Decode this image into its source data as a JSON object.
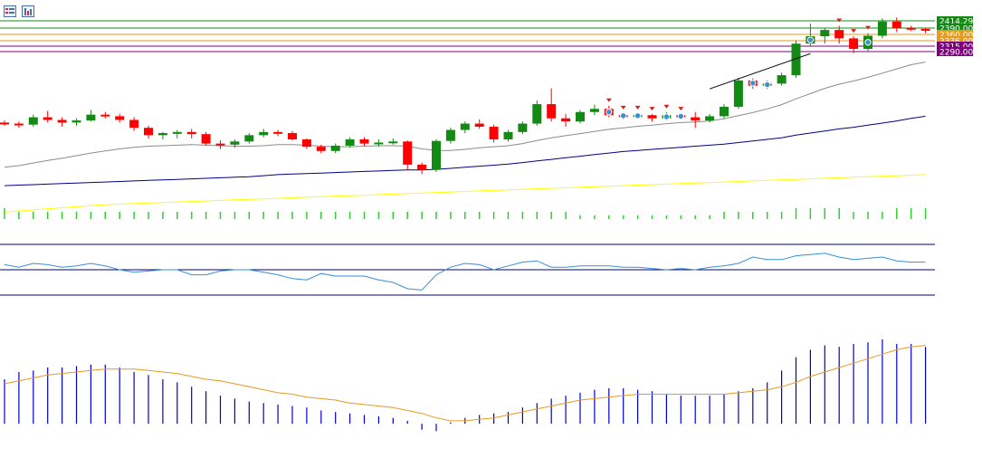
{
  "toolbar": {
    "icons": [
      "chart-list-icon",
      "chart-bar-icon"
    ]
  },
  "colors": {
    "bull": "#138a13",
    "bear": "#ff0000",
    "ma_fast": "#8c8c8c",
    "ma_mid": "#00008b",
    "ma_slow": "#ffff00",
    "volume": "#32cd32",
    "rsi": "#3a8fd6",
    "hist": "#0000cd",
    "signal": "#e69a1e",
    "trend": "#000000"
  },
  "chart_data": [
    {
      "type": "candlestick",
      "panel": "price",
      "levels": [
        {
          "value": 2414.29,
          "label": "2414.29",
          "color": "#138a13"
        },
        {
          "value": 2390.0,
          "label": "2390.00",
          "color": "#138a13"
        },
        {
          "value": 2360.0,
          "label": "2360.00",
          "color": "#e69a1e"
        },
        {
          "value": 2336.0,
          "label": "2336.00",
          "color": "#e69a1e"
        },
        {
          "value": 2315.0,
          "label": "2315.00",
          "color": "#800080"
        },
        {
          "value": 2290.0,
          "label": "2290.00",
          "color": "#800080"
        }
      ],
      "ohlc": [
        [
          1880,
          1884,
          1874,
          1878
        ],
        [
          1878,
          1882,
          1870,
          1876
        ],
        [
          1876,
          1895,
          1872,
          1890
        ],
        [
          1890,
          1902,
          1880,
          1885
        ],
        [
          1885,
          1890,
          1872,
          1880
        ],
        [
          1880,
          1888,
          1874,
          1884
        ],
        [
          1884,
          1904,
          1882,
          1895
        ],
        [
          1895,
          1900,
          1888,
          1892
        ],
        [
          1892,
          1896,
          1880,
          1885
        ],
        [
          1885,
          1890,
          1864,
          1870
        ],
        [
          1870,
          1874,
          1850,
          1856
        ],
        [
          1856,
          1862,
          1848,
          1860
        ],
        [
          1860,
          1866,
          1850,
          1862
        ],
        [
          1862,
          1868,
          1850,
          1858
        ],
        [
          1858,
          1862,
          1836,
          1840
        ],
        [
          1840,
          1846,
          1830,
          1838
        ],
        [
          1838,
          1848,
          1832,
          1844
        ],
        [
          1844,
          1860,
          1840,
          1856
        ],
        [
          1856,
          1868,
          1852,
          1862
        ],
        [
          1862,
          1866,
          1854,
          1860
        ],
        [
          1860,
          1864,
          1846,
          1848
        ],
        [
          1848,
          1850,
          1830,
          1834
        ],
        [
          1834,
          1838,
          1822,
          1826
        ],
        [
          1826,
          1840,
          1822,
          1836
        ],
        [
          1836,
          1852,
          1832,
          1848
        ],
        [
          1848,
          1852,
          1836,
          1840
        ],
        [
          1840,
          1848,
          1834,
          1842
        ],
        [
          1842,
          1850,
          1838,
          1844
        ],
        [
          1844,
          1846,
          1790,
          1800
        ],
        [
          1800,
          1804,
          1782,
          1790
        ],
        [
          1790,
          1848,
          1786,
          1845
        ],
        [
          1845,
          1870,
          1840,
          1866
        ],
        [
          1866,
          1882,
          1860,
          1878
        ],
        [
          1878,
          1886,
          1868,
          1872
        ],
        [
          1872,
          1876,
          1842,
          1848
        ],
        [
          1848,
          1866,
          1844,
          1862
        ],
        [
          1862,
          1882,
          1858,
          1878
        ],
        [
          1878,
          1922,
          1874,
          1915
        ],
        [
          1915,
          1945,
          1882,
          1888
        ],
        [
          1888,
          1896,
          1872,
          1882
        ],
        [
          1882,
          1904,
          1878,
          1900
        ],
        [
          1900,
          1914,
          1894,
          1906
        ],
        [
          1906,
          1912,
          1890,
          1894
        ],
        [
          1894,
          1898,
          1886,
          1892
        ],
        [
          1892,
          1898,
          1888,
          1894
        ],
        [
          1894,
          1896,
          1882,
          1888
        ],
        [
          1888,
          1900,
          1884,
          1894
        ],
        [
          1894,
          1896,
          1886,
          1890
        ],
        [
          1890,
          1900,
          1870,
          1884
        ],
        [
          1884,
          1896,
          1880,
          1892
        ],
        [
          1892,
          1915,
          1888,
          1910
        ],
        [
          1910,
          1965,
          1906,
          1960
        ],
        [
          1960,
          1964,
          1944,
          1950
        ],
        [
          1950,
          1960,
          1944,
          1954
        ],
        [
          1954,
          1975,
          1950,
          1970
        ],
        [
          1970,
          2036,
          1965,
          2030
        ],
        [
          2030,
          2068,
          2024,
          2044
        ],
        [
          2044,
          2060,
          2030,
          2056
        ],
        [
          2056,
          2064,
          2030,
          2040
        ],
        [
          2040,
          2044,
          2012,
          2020
        ],
        [
          2020,
          2050,
          2016,
          2045
        ],
        [
          2045,
          2078,
          2040,
          2072
        ],
        [
          2072,
          2080,
          2052,
          2060
        ],
        [
          2060,
          2064,
          2054,
          2058
        ],
        [
          2058,
          2060,
          2050,
          2055
        ]
      ],
      "ma_fast": [
        1795,
        1798,
        1803,
        1808,
        1812,
        1817,
        1822,
        1826,
        1830,
        1833,
        1835,
        1836,
        1837,
        1838,
        1837,
        1836,
        1835,
        1835,
        1836,
        1838,
        1838,
        1837,
        1835,
        1834,
        1834,
        1835,
        1836,
        1836,
        1835,
        1830,
        1827,
        1827,
        1829,
        1832,
        1834,
        1836,
        1840,
        1846,
        1851,
        1855,
        1859,
        1863,
        1867,
        1870,
        1873,
        1875,
        1878,
        1880,
        1881,
        1883,
        1887,
        1893,
        1899,
        1906,
        1914,
        1925,
        1935,
        1945,
        1953,
        1959,
        1966,
        1974,
        1982,
        1990,
        1995
      ],
      "ma_mid": [
        1760,
        1761,
        1762,
        1763,
        1764,
        1765,
        1766,
        1767,
        1768,
        1769,
        1770,
        1771,
        1772,
        1773,
        1774,
        1775,
        1776,
        1777,
        1779,
        1781,
        1782,
        1783,
        1784,
        1785,
        1786,
        1787,
        1788,
        1789,
        1790,
        1790,
        1791,
        1793,
        1795,
        1797,
        1799,
        1801,
        1804,
        1807,
        1810,
        1813,
        1816,
        1819,
        1822,
        1825,
        1827,
        1829,
        1831,
        1833,
        1835,
        1837,
        1839,
        1842,
        1845,
        1848,
        1851,
        1856,
        1860,
        1864,
        1868,
        1871,
        1875,
        1879,
        1883,
        1888,
        1892
      ],
      "ma_slow": [
        1710,
        1712,
        1714,
        1716,
        1718,
        1720,
        1722,
        1724,
        1725,
        1726,
        1727,
        1728,
        1729,
        1730,
        1731,
        1732,
        1733,
        1734,
        1735,
        1736,
        1737,
        1738,
        1739,
        1740,
        1741,
        1742,
        1743,
        1744,
        1745,
        1746,
        1747,
        1748,
        1749,
        1750,
        1751,
        1752,
        1753,
        1754,
        1755,
        1756,
        1757,
        1758,
        1759,
        1760,
        1761,
        1762,
        1763,
        1764,
        1765,
        1766,
        1767,
        1768,
        1769,
        1770,
        1771,
        1772,
        1773,
        1774,
        1775,
        1776,
        1777,
        1778,
        1779,
        1780,
        1781
      ],
      "trend": [
        [
          49,
          1944
        ],
        [
          56,
          2011
        ]
      ],
      "markers": {
        "down": [
          42,
          43,
          44,
          45,
          46,
          47,
          58,
          59,
          60
        ],
        "circle": [
          42,
          43,
          44,
          46,
          47,
          52,
          53,
          56,
          60
        ]
      }
    },
    {
      "type": "bar",
      "panel": "volume",
      "values": [
        3,
        2,
        2,
        2,
        2,
        2,
        2,
        2,
        2,
        2,
        2,
        2,
        2,
        2,
        2,
        2,
        2,
        2,
        2,
        2,
        2,
        2,
        2,
        2,
        2,
        2,
        2,
        2,
        2,
        2,
        2,
        2,
        2,
        2,
        2,
        2,
        2,
        2,
        2,
        2,
        1,
        1,
        1,
        1,
        1,
        1,
        1,
        1,
        1,
        1,
        2,
        2,
        2,
        2,
        2,
        3,
        3,
        3,
        3,
        2,
        2,
        2,
        3,
        3,
        3
      ]
    },
    {
      "type": "line",
      "panel": "rsi",
      "levels": [
        70,
        50,
        30
      ],
      "ylim": [
        20,
        80
      ],
      "values": [
        54,
        52,
        55,
        54,
        52,
        53,
        55,
        53,
        50,
        48,
        49,
        50,
        50,
        46,
        46,
        49,
        50,
        50,
        48,
        46,
        43,
        42,
        47,
        45,
        45,
        45,
        42,
        40,
        35,
        34,
        46,
        52,
        55,
        54,
        50,
        53,
        56,
        57,
        52,
        52,
        53,
        53,
        53,
        52,
        52,
        51,
        50,
        51,
        50,
        52,
        53,
        55,
        60,
        58,
        58,
        61,
        62,
        63,
        60,
        58,
        59,
        60,
        57,
        56,
        56
      ]
    },
    {
      "type": "bar+line",
      "panel": "macd",
      "ylim": [
        -6,
        57
      ],
      "histogram": [
        30,
        35,
        36,
        38,
        38,
        39,
        40,
        40,
        38,
        35,
        33,
        30,
        28,
        25,
        22,
        19,
        17,
        15,
        14,
        13,
        12,
        11,
        9,
        8,
        7,
        6,
        5,
        4,
        2,
        -4,
        -5,
        1,
        4,
        6,
        7,
        8,
        11,
        14,
        17,
        19,
        21,
        23,
        24,
        24,
        23,
        22,
        20,
        19,
        19,
        19,
        20,
        22,
        24,
        28,
        36,
        45,
        50,
        53,
        52,
        54,
        55,
        57,
        54,
        54,
        52
      ],
      "signal": [
        27,
        29,
        31,
        33,
        34,
        35,
        36,
        37,
        37,
        37,
        36,
        35,
        34,
        32,
        30,
        29,
        27,
        25,
        23,
        21,
        20,
        18,
        17,
        16,
        14,
        13,
        12,
        11,
        9,
        7,
        4,
        2,
        2,
        3,
        4,
        6,
        8,
        10,
        12,
        14,
        16,
        17,
        18,
        19,
        20,
        20,
        20,
        20,
        20,
        20,
        20,
        21,
        22,
        23,
        25,
        28,
        32,
        35,
        38,
        41,
        44,
        47,
        50,
        52,
        53
      ]
    }
  ]
}
